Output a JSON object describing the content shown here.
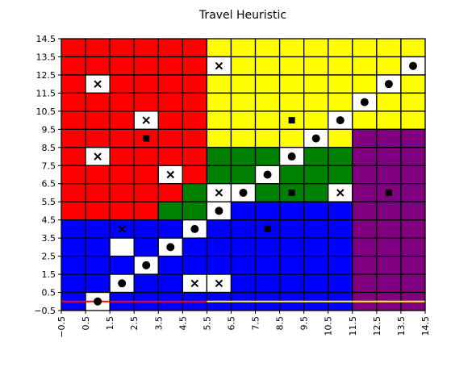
{
  "chart_data": {
    "type": "heatmap",
    "title": "Travel Heuristic",
    "xlabel": "",
    "ylabel": "",
    "xlim": [
      -0.5,
      14.5
    ],
    "ylim": [
      -0.5,
      14.5
    ],
    "x_ticks": [
      "−0.5",
      "0.5",
      "1.5",
      "2.5",
      "3.5",
      "4.5",
      "5.5",
      "6.5",
      "7.5",
      "8.5",
      "9.5",
      "10.5",
      "11.5",
      "12.5",
      "13.5",
      "14.5"
    ],
    "y_ticks": [
      "−0.5",
      "0.5",
      "1.5",
      "2.5",
      "3.5",
      "4.5",
      "5.5",
      "6.5",
      "7.5",
      "8.5",
      "9.5",
      "10.5",
      "11.5",
      "12.5",
      "13.5",
      "14.5"
    ],
    "grid": true,
    "color_map": {
      "R": "#ff0000",
      "Y": "#ffff00",
      "G": "#008000",
      "B": "#0000ff",
      "P": "#800080",
      "W": "#ffffff"
    },
    "rows_top_to_bottom": [
      "RRRRRRYYYYYYYYY",
      "RRRRRRWYYYYYYYW",
      "RWRRRRYYYYYYYWY",
      "RRRRRRYYYYYYWYY",
      "RRRWRRYYYYYWYYY",
      "RRRRRRYYYYWYPPP",
      "RWRRRRGGGWGGPPP",
      "RRRRWRGGWGGGPPP",
      "RRRRRGWWGGGWPPP",
      "RRRRGGWBBBBBPPP",
      "BBBBBWBBBBBBPPP",
      "BBWBWBBBBBBBPPP",
      "BBBWBBBBBBBBPPP",
      "BBWBBWWBBBBBPPP",
      "BWBBBBBBBBBBPPP"
    ],
    "markers": [
      {
        "x": 1,
        "y": 12,
        "shape": "x"
      },
      {
        "x": 3,
        "y": 10,
        "shape": "x"
      },
      {
        "x": 1,
        "y": 8,
        "shape": "x"
      },
      {
        "x": 4,
        "y": 7,
        "shape": "x"
      },
      {
        "x": 6,
        "y": 13,
        "shape": "x"
      },
      {
        "x": 6,
        "y": 6,
        "shape": "x"
      },
      {
        "x": 11,
        "y": 6,
        "shape": "x"
      },
      {
        "x": 2,
        "y": 4,
        "shape": "x"
      },
      {
        "x": 5,
        "y": 1,
        "shape": "x"
      },
      {
        "x": 6,
        "y": 1,
        "shape": "x"
      },
      {
        "x": 14,
        "y": 13,
        "shape": "circle"
      },
      {
        "x": 13,
        "y": 12,
        "shape": "circle"
      },
      {
        "x": 12,
        "y": 11,
        "shape": "circle"
      },
      {
        "x": 11,
        "y": 10,
        "shape": "circle"
      },
      {
        "x": 10,
        "y": 9,
        "shape": "circle"
      },
      {
        "x": 9,
        "y": 8,
        "shape": "circle"
      },
      {
        "x": 8,
        "y": 7,
        "shape": "circle"
      },
      {
        "x": 7,
        "y": 6,
        "shape": "circle"
      },
      {
        "x": 6,
        "y": 5,
        "shape": "circle"
      },
      {
        "x": 5,
        "y": 4,
        "shape": "circle"
      },
      {
        "x": 4,
        "y": 3,
        "shape": "circle"
      },
      {
        "x": 3,
        "y": 2,
        "shape": "circle"
      },
      {
        "x": 2,
        "y": 1,
        "shape": "circle"
      },
      {
        "x": 1,
        "y": 0,
        "shape": "circle"
      },
      {
        "x": 3,
        "y": 9,
        "shape": "square"
      },
      {
        "x": 9,
        "y": 10,
        "shape": "square"
      },
      {
        "x": 9,
        "y": 6,
        "shape": "square"
      },
      {
        "x": 13,
        "y": 6,
        "shape": "square"
      },
      {
        "x": 8,
        "y": 4,
        "shape": "square"
      }
    ],
    "boundary_lines": [
      {
        "y": 0,
        "x_from": -0.5,
        "x_to": 5.5,
        "color": "#ff0000"
      },
      {
        "y": 0,
        "x_from": 5.5,
        "x_to": 11.5,
        "color": "#ffff00"
      },
      {
        "y": 0,
        "x_from": 11.5,
        "x_to": 14.5,
        "color": "#ffff00"
      }
    ]
  }
}
